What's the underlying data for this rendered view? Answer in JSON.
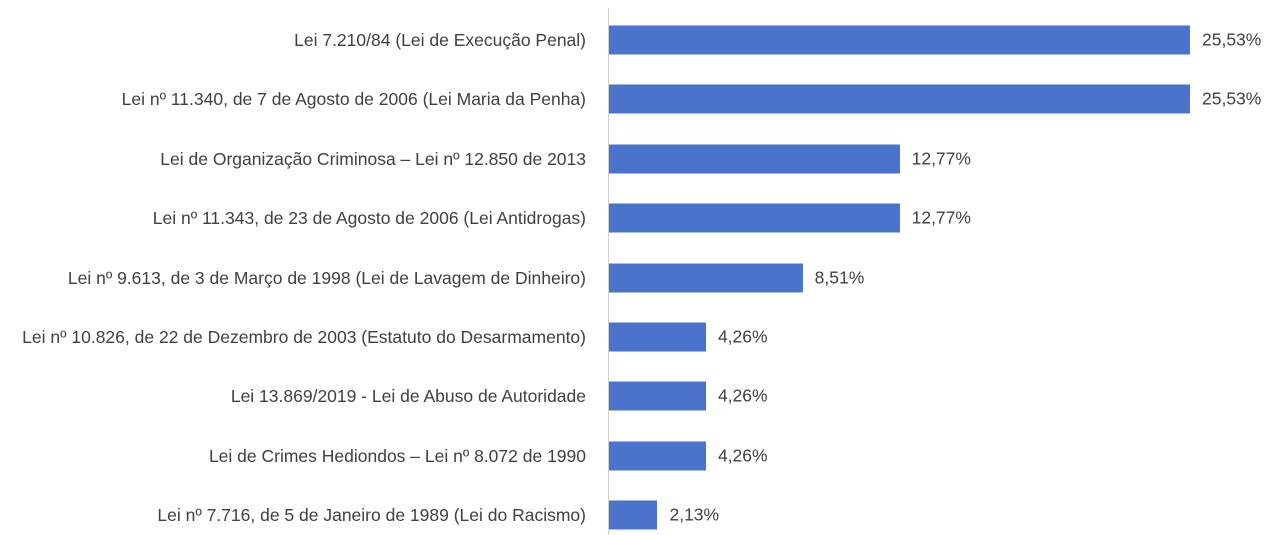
{
  "chart_data": {
    "type": "bar",
    "orientation": "horizontal",
    "color": "#4a74cc",
    "categories": [
      "Lei 7.210/84 (Lei de Execução Penal)",
      "Lei nº 11.340, de 7 de Agosto de 2006 (Lei Maria da Penha)",
      "Lei de Organização Criminosa – Lei nº 12.850 de 2013",
      "Lei nº 11.343, de 23 de Agosto de 2006 (Lei Antidrogas)",
      "Lei nº 9.613, de 3 de Março de 1998 (Lei de Lavagem de Dinheiro)",
      "Lei nº 10.826, de 22 de Dezembro de 2003 (Estatuto do Desarmamento)",
      "Lei 13.869/2019 - Lei de Abuso de Autoridade",
      "Lei de Crimes Hediondos – Lei nº 8.072 de 1990",
      "Lei nº 7.716, de 5 de Janeiro de 1989 (Lei do Racismo)"
    ],
    "values": [
      25.53,
      25.53,
      12.77,
      12.77,
      8.51,
      4.26,
      4.26,
      4.26,
      2.13
    ],
    "value_labels": [
      "25,53%",
      "25,53%",
      "12,77%",
      "12,77%",
      "8,51%",
      "4,26%",
      "4,26%",
      "4,26%",
      "2,13%"
    ]
  }
}
